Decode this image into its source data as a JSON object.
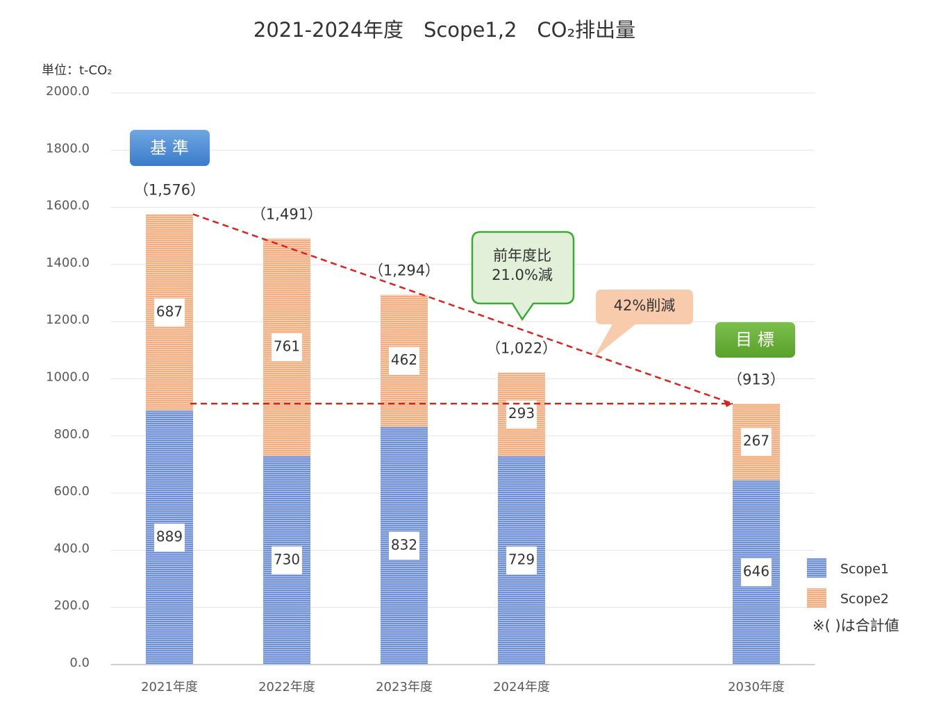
{
  "chart_data": {
    "type": "bar",
    "stacked": true,
    "title": "2021-2024年度　Scope1,2　CO₂排出量",
    "unit_label": "単位：t-CO₂",
    "categories": [
      "2021年度",
      "2022年度",
      "2023年度",
      "2024年度",
      null,
      "2030年度"
    ],
    "series": [
      {
        "name": "Scope1",
        "color": "#6c8fd8",
        "values": [
          889,
          730,
          832,
          729,
          null,
          646
        ]
      },
      {
        "name": "Scope2",
        "color": "#f3ad7f",
        "values": [
          687,
          761,
          462,
          293,
          null,
          267
        ]
      }
    ],
    "totals": {
      "values": [
        1576,
        1491,
        1294,
        1022,
        null,
        913
      ],
      "value_labels": [
        "（1,576）",
        "（1,491）",
        "（1,294）",
        "（1,022）",
        null,
        "（913）"
      ]
    },
    "ylim": [
      0,
      2000
    ],
    "yticks": [
      {
        "value": 0,
        "label": "0.0"
      },
      {
        "value": 200,
        "label": "200.0"
      },
      {
        "value": 400,
        "label": "400.0"
      },
      {
        "value": 600,
        "label": "600.0"
      },
      {
        "value": 800,
        "label": "800.0"
      },
      {
        "value": 1000,
        "label": "1000.0"
      },
      {
        "value": 1200,
        "label": "1200.0"
      },
      {
        "value": 1400,
        "label": "1400.0"
      },
      {
        "value": 1600,
        "label": "1600.0"
      },
      {
        "value": 1800,
        "label": "1800.0"
      },
      {
        "value": 2000,
        "label": "2000.0"
      }
    ],
    "grid": true,
    "legend": "right",
    "annotations": {
      "baseline_badge": "基 準",
      "target_badge": "目 標",
      "yoy_callout": [
        "前年度比",
        "21.0%減"
      ],
      "reduction_callout": "42%削減",
      "note": "※( )は合計値"
    }
  }
}
